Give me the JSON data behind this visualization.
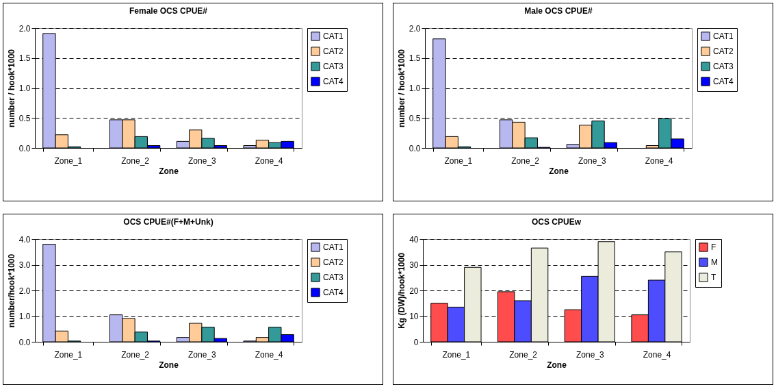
{
  "chart_data": [
    {
      "type": "bar",
      "title": "Female OCS CPUE#",
      "xlabel": "Zone",
      "ylabel": "number / hook*1000",
      "categories": [
        "Zone_1",
        "Zone_2",
        "Zone_3",
        "Zone_4"
      ],
      "series": [
        {
          "name": "CAT1",
          "color": "#b8b8f0",
          "values": [
            1.91,
            0.47,
            0.11,
            0.04
          ]
        },
        {
          "name": "CAT2",
          "color": "#ffcc99",
          "values": [
            0.22,
            0.47,
            0.3,
            0.13
          ]
        },
        {
          "name": "CAT3",
          "color": "#339999",
          "values": [
            0.02,
            0.19,
            0.16,
            0.09
          ]
        },
        {
          "name": "CAT4",
          "color": "#0000ff",
          "values": [
            0,
            0.04,
            0.04,
            0.11
          ]
        }
      ],
      "ylim": [
        0,
        2
      ],
      "yticks": [
        {
          "value": 0,
          "label": "0.0"
        },
        0.5,
        {
          "value": 1,
          "label": "1.0"
        },
        1.5,
        {
          "value": 2,
          "label": "2.0"
        }
      ],
      "grid": "y",
      "legend": "top right"
    },
    {
      "type": "bar",
      "title": "Male OCS CPUE#",
      "xlabel": "Zone",
      "ylabel": "number / hook*1000",
      "categories": [
        "Zone_1",
        "Zone_2",
        "Zone_3",
        "Zone_4"
      ],
      "series": [
        {
          "name": "CAT1",
          "color": "#b8b8f0",
          "values": [
            1.82,
            0.47,
            0.06,
            0
          ]
        },
        {
          "name": "CAT2",
          "color": "#ffcc99",
          "values": [
            0.19,
            0.43,
            0.38,
            0.04
          ]
        },
        {
          "name": "CAT3",
          "color": "#339999",
          "values": [
            0.02,
            0.17,
            0.45,
            0.49
          ]
        },
        {
          "name": "CAT4",
          "color": "#0000ff",
          "values": [
            0,
            0.01,
            0.09,
            0.15
          ]
        }
      ],
      "ylim": [
        0,
        2
      ],
      "yticks": [
        {
          "value": 0,
          "label": "0.0"
        },
        0.5,
        {
          "value": 1,
          "label": "1.0"
        },
        1.5,
        {
          "value": 2,
          "label": "2.0"
        }
      ],
      "grid": "y",
      "legend": "top right"
    },
    {
      "type": "bar",
      "title": "OCS CPUE#(F+M+Unk)",
      "xlabel": "Zone",
      "ylabel": "number/hook*1000",
      "categories": [
        "Zone_1",
        "Zone_2",
        "Zone_3",
        "Zone_4"
      ],
      "series": [
        {
          "name": "CAT1",
          "color": "#b8b8f0",
          "values": [
            3.8,
            1.05,
            0.17,
            0.03
          ]
        },
        {
          "name": "CAT2",
          "color": "#ffcc99",
          "values": [
            0.42,
            0.91,
            0.72,
            0.17
          ]
        },
        {
          "name": "CAT3",
          "color": "#339999",
          "values": [
            0.03,
            0.38,
            0.57,
            0.57
          ]
        },
        {
          "name": "CAT4",
          "color": "#0000ff",
          "values": [
            0,
            0.03,
            0.13,
            0.28
          ]
        }
      ],
      "ylim": [
        0,
        4
      ],
      "yticks": [
        {
          "value": 0,
          "label": "0.0"
        },
        {
          "value": 1,
          "label": "1.0"
        },
        {
          "value": 2,
          "label": "2.0"
        },
        {
          "value": 3,
          "label": "3.0"
        },
        {
          "value": 4,
          "label": "4.0"
        }
      ],
      "grid": "y",
      "legend": "top right"
    },
    {
      "type": "bar",
      "title": "OCS CPUEw",
      "xlabel": "Zone",
      "ylabel": "Kg (DW)/hook*1000",
      "categories": [
        "Zone_1",
        "Zone_2",
        "Zone_3",
        "Zone_4"
      ],
      "series": [
        {
          "name": "F",
          "color": "#ff4d4d",
          "values": [
            15,
            19.5,
            12.5,
            10.5
          ]
        },
        {
          "name": "M",
          "color": "#4d4dff",
          "values": [
            13.5,
            16,
            25.5,
            24
          ]
        },
        {
          "name": "T",
          "color": "#ececdc",
          "values": [
            29,
            36.5,
            39,
            35
          ]
        }
      ],
      "ylim": [
        0,
        40
      ],
      "yticks": [
        0,
        10,
        20,
        30,
        40
      ],
      "grid": "y",
      "legend": "top right"
    }
  ]
}
